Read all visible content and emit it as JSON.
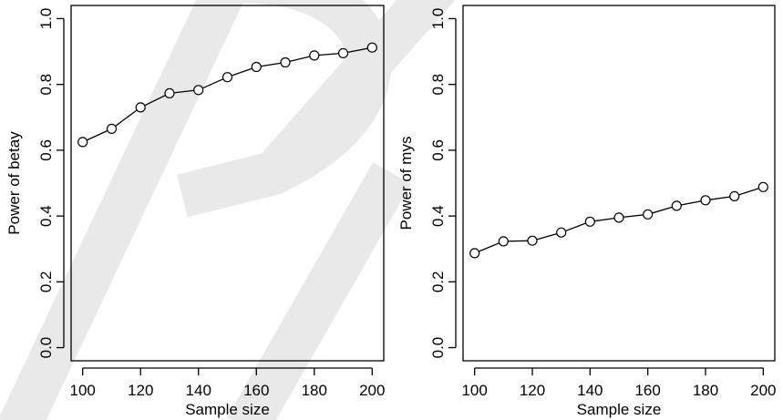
{
  "chart_data": [
    {
      "type": "line",
      "xlabel": "Sample size",
      "ylabel": "Power of betay",
      "xlim": [
        96,
        204
      ],
      "ylim": [
        -0.04,
        1.04
      ],
      "xticks": [
        100,
        120,
        140,
        160,
        180,
        200
      ],
      "yticks": [
        0.0,
        0.2,
        0.4,
        0.6,
        0.8,
        1.0
      ],
      "xtick_labels": [
        "100",
        "120",
        "140",
        "160",
        "180",
        "200"
      ],
      "ytick_labels": [
        "0.0",
        "0.2",
        "0.4",
        "0.6",
        "0.8",
        "1.0"
      ],
      "x": [
        100,
        110,
        120,
        130,
        140,
        150,
        160,
        170,
        180,
        190,
        200
      ],
      "y": [
        0.625,
        0.665,
        0.73,
        0.773,
        0.783,
        0.822,
        0.853,
        0.867,
        0.888,
        0.895,
        0.912
      ],
      "marker": "open-circle",
      "grid": false
    },
    {
      "type": "line",
      "xlabel": "Sample size",
      "ylabel": "Power of mys",
      "xlim": [
        96,
        204
      ],
      "ylim": [
        -0.04,
        1.04
      ],
      "xticks": [
        100,
        120,
        140,
        160,
        180,
        200
      ],
      "yticks": [
        0.0,
        0.2,
        0.4,
        0.6,
        0.8,
        1.0
      ],
      "xtick_labels": [
        "100",
        "120",
        "140",
        "160",
        "180",
        "200"
      ],
      "ytick_labels": [
        "0.0",
        "0.2",
        "0.4",
        "0.6",
        "0.8",
        "1.0"
      ],
      "x": [
        100,
        110,
        120,
        130,
        140,
        150,
        160,
        170,
        180,
        190,
        200
      ],
      "y": [
        0.287,
        0.323,
        0.325,
        0.35,
        0.383,
        0.395,
        0.405,
        0.431,
        0.448,
        0.46,
        0.488
      ],
      "marker": "open-circle",
      "grid": false
    }
  ],
  "colors": {
    "ink": "#000000",
    "background": "#ffffff",
    "watermark": "#e9e9e9"
  }
}
